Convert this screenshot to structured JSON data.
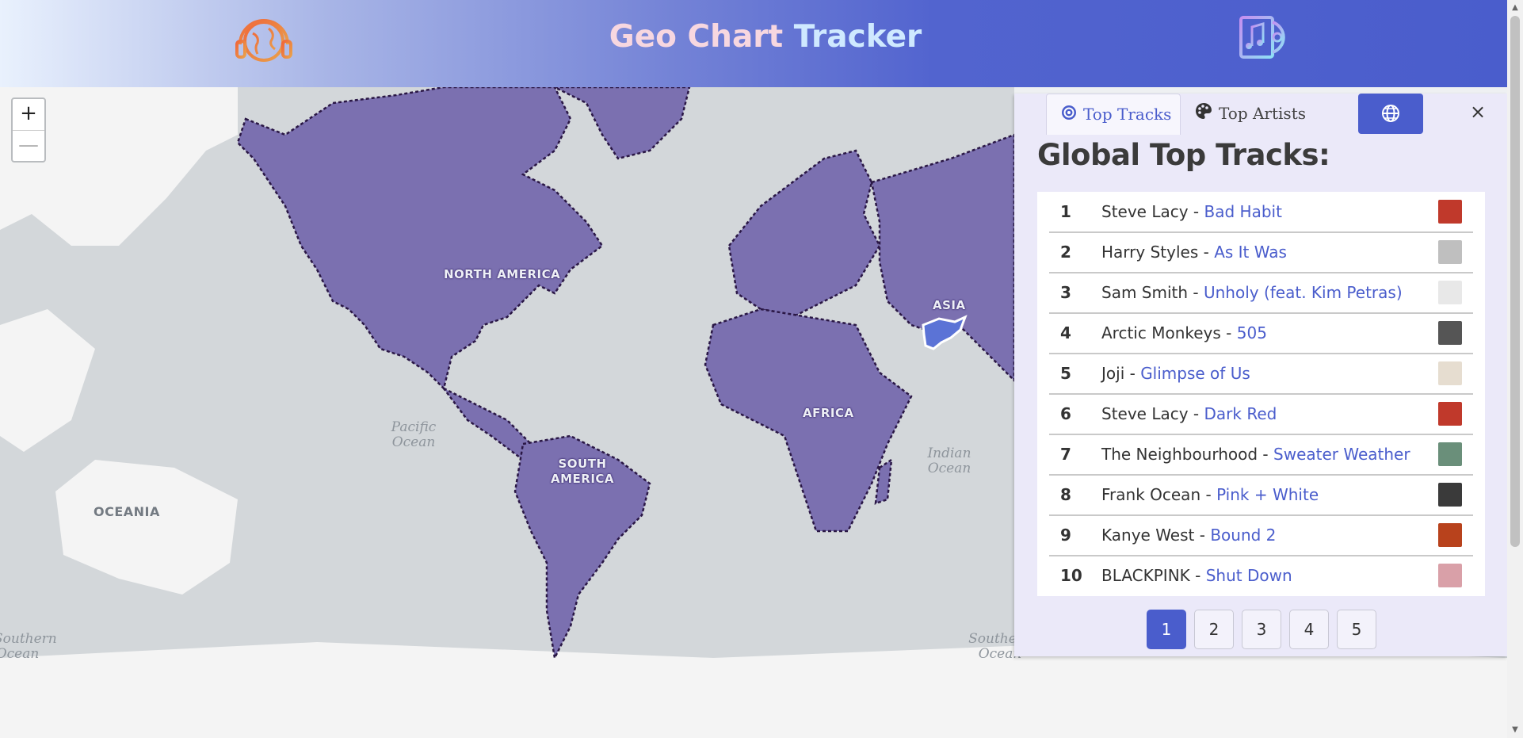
{
  "header": {
    "title_part1": "Geo Chart",
    "title_part2": "Tracker",
    "left_logo_icon": "headphones-globe-icon",
    "right_logo_icon": "music-disc-icon"
  },
  "map": {
    "zoom_in": "+",
    "zoom_out": "—",
    "regions": [
      "NORTH AMERICA",
      "SOUTH AMERICA",
      "AFRICA",
      "ASIA"
    ],
    "oceans": [
      "Pacific Ocean",
      "Indian Ocean",
      "Southern Ocean",
      "Southern Ocean"
    ],
    "other_labels": [
      "OCEANIA"
    ],
    "fill_color": "#7b70b0",
    "border_color": "#2a1745",
    "highlight_color": "#5b73d6"
  },
  "panel": {
    "tabs": [
      {
        "label": "Top Tracks",
        "icon": "target-icon",
        "active": true
      },
      {
        "label": "Top Artists",
        "icon": "palette-icon",
        "active": false
      }
    ],
    "globe_button_icon": "globe-icon",
    "close_label": "×",
    "title": "Global Top Tracks:",
    "tracks": [
      {
        "rank": "1",
        "artist": "Steve Lacy",
        "song": "Bad Habit",
        "thumb_color": "#c0392b"
      },
      {
        "rank": "2",
        "artist": "Harry Styles",
        "song": "As It Was",
        "thumb_color": "#bfbfbf"
      },
      {
        "rank": "3",
        "artist": "Sam Smith",
        "song": "Unholy (feat. Kim Petras)",
        "thumb_color": "#e8e8e8"
      },
      {
        "rank": "4",
        "artist": "Arctic Monkeys",
        "song": "505",
        "thumb_color": "#555555"
      },
      {
        "rank": "5",
        "artist": "Joji",
        "song": "Glimpse of Us",
        "thumb_color": "#e6ddd0"
      },
      {
        "rank": "6",
        "artist": "Steve Lacy",
        "song": "Dark Red",
        "thumb_color": "#c0392b"
      },
      {
        "rank": "7",
        "artist": "The Neighbourhood",
        "song": "Sweater Weather",
        "thumb_color": "#6a8f7a"
      },
      {
        "rank": "8",
        "artist": "Frank Ocean",
        "song": "Pink + White",
        "thumb_color": "#3a3a3a"
      },
      {
        "rank": "9",
        "artist": "Kanye West",
        "song": "Bound 2",
        "thumb_color": "#b8421c"
      },
      {
        "rank": "10",
        "artist": "BLACKPINK",
        "song": "Shut Down",
        "thumb_color": "#d9a0a8"
      }
    ],
    "separator": " - ",
    "pages": [
      "1",
      "2",
      "3",
      "4",
      "5"
    ],
    "active_page": "1"
  }
}
